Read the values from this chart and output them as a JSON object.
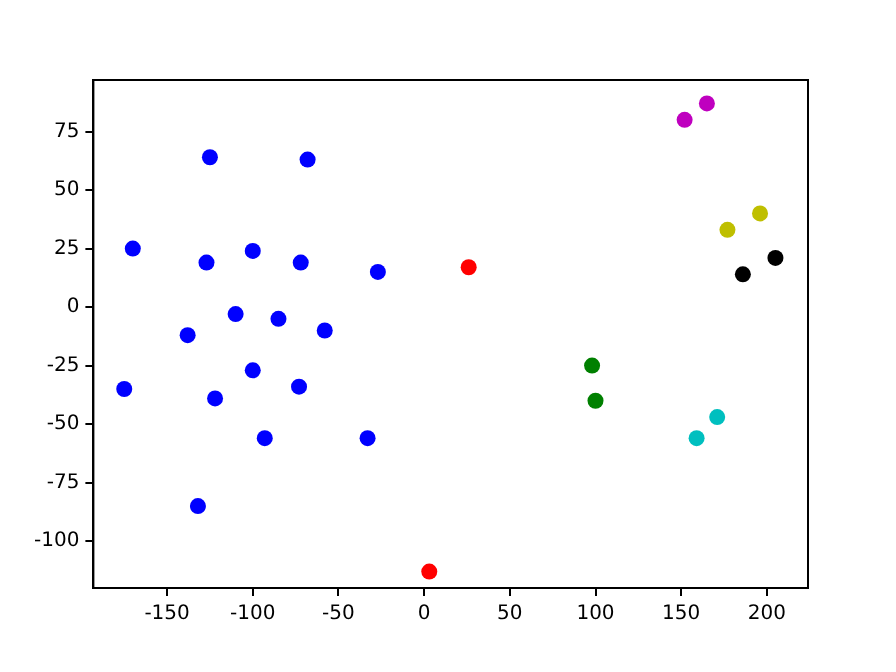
{
  "chart_data": {
    "type": "scatter",
    "marker": "circle",
    "grid": false,
    "legend": false,
    "xlim": [
      -193,
      224
    ],
    "ylim": [
      -120,
      97
    ],
    "xticks": [
      -150,
      -100,
      -50,
      0,
      50,
      100,
      150,
      200
    ],
    "yticks": [
      -100,
      -75,
      -50,
      -25,
      0,
      25,
      50,
      75
    ],
    "series": [
      {
        "color": "#0000ff",
        "x": [
          -170,
          -125,
          -68,
          -127,
          -100,
          -72,
          -27,
          -110,
          -85,
          -138,
          -58,
          -175,
          -122,
          -100,
          -73,
          -93,
          -33,
          -132
        ],
        "values": [
          25,
          64,
          63,
          19,
          24,
          19,
          15,
          -3,
          -5,
          -12,
          -10,
          -35,
          -39,
          -27,
          -34,
          -56,
          -56,
          -85
        ]
      },
      {
        "color": "#ff0000",
        "x": [
          26,
          3
        ],
        "values": [
          17,
          -113
        ]
      },
      {
        "color": "#bf00bf",
        "x": [
          152,
          165
        ],
        "values": [
          80,
          87
        ]
      },
      {
        "color": "#bfbf00",
        "x": [
          177,
          196
        ],
        "values": [
          33,
          40
        ]
      },
      {
        "color": "#000000",
        "x": [
          186,
          205
        ],
        "values": [
          14,
          21
        ]
      },
      {
        "color": "#008000",
        "x": [
          98,
          100
        ],
        "values": [
          -25,
          -40
        ]
      },
      {
        "color": "#00bfbf",
        "x": [
          159,
          171
        ],
        "values": [
          -56,
          -47
        ]
      }
    ]
  }
}
